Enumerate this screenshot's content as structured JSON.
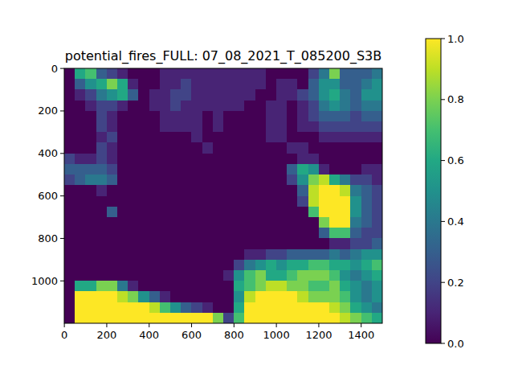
{
  "chart_data": {
    "type": "heatmap",
    "title": "potential_fires_FULL: 07_08_2021_T_085200_S3B",
    "color": "viridis",
    "xlim": [
      -0.5,
      1499.5
    ],
    "ylim": [
      1199.5,
      -0.5
    ],
    "xticks": [
      0,
      200,
      400,
      600,
      800,
      1000,
      1200,
      1400
    ],
    "yticks": [
      0,
      200,
      400,
      600,
      800,
      1000
    ],
    "color_range": [
      0,
      1
    ],
    "color_ticks": [
      {
        "value": 0,
        "label": "0.0"
      },
      0.2,
      0.4,
      0.6,
      0.8,
      {
        "value": 1,
        "label": "1.0"
      }
    ],
    "cells": [
      [
        0,
        0.6,
        0.7,
        0.3,
        0.2,
        0.1,
        0,
        0,
        0,
        0.1,
        0.1,
        0.1,
        0.1,
        0.1,
        0.1,
        0.1,
        0.1,
        0.1,
        0.1,
        0,
        0,
        0,
        0,
        0.2,
        0.4,
        0.8,
        0.3,
        0.3,
        0.3,
        0.4
      ],
      [
        0,
        0.3,
        0.5,
        0.6,
        0.8,
        0.6,
        0.1,
        0,
        0,
        0.1,
        0.1,
        0.2,
        0.1,
        0.1,
        0.1,
        0.1,
        0.1,
        0.1,
        0.1,
        0,
        0.1,
        0.1,
        0,
        0.3,
        0.5,
        0.5,
        0.3,
        0.3,
        0.4,
        0.5
      ],
      [
        0,
        0.1,
        0.2,
        0.4,
        0.5,
        0.6,
        0.3,
        0,
        0.1,
        0.1,
        0.2,
        0.2,
        0.1,
        0.1,
        0.1,
        0.1,
        0.1,
        0.1,
        0,
        0,
        0.1,
        0.1,
        0.2,
        0.3,
        0.5,
        0.6,
        0.4,
        0.3,
        0.5,
        0.5
      ],
      [
        0,
        0,
        0.1,
        0.2,
        0.2,
        0.1,
        0,
        0,
        0.1,
        0.1,
        0.2,
        0.1,
        0.1,
        0.1,
        0.1,
        0.1,
        0.1,
        0,
        0,
        0.1,
        0.1,
        0,
        0.1,
        0.2,
        0.4,
        0.5,
        0.4,
        0.3,
        0.4,
        0.4
      ],
      [
        0,
        0,
        0,
        0.2,
        0.1,
        0,
        0,
        0,
        0,
        0.1,
        0.1,
        0.1,
        0.1,
        0,
        0.1,
        0,
        0,
        0,
        0,
        0.1,
        0.1,
        0,
        0.1,
        0.2,
        0.3,
        0.3,
        0.3,
        0.2,
        0.3,
        0.3
      ],
      [
        0,
        0,
        0,
        0.2,
        0.1,
        0,
        0,
        0,
        0,
        0.1,
        0.1,
        0.1,
        0.1,
        0,
        0.1,
        0,
        0,
        0,
        0,
        0.1,
        0.1,
        0,
        0.1,
        0.1,
        0.2,
        0.2,
        0.2,
        0.2,
        0.2,
        0.2
      ],
      [
        0,
        0,
        0,
        0.1,
        0.2,
        0,
        0,
        0,
        0,
        0,
        0,
        0,
        0.1,
        0,
        0,
        0,
        0,
        0,
        0,
        0.1,
        0.1,
        0,
        0,
        0,
        0.1,
        0.1,
        0.1,
        0.1,
        0.1,
        0.1
      ],
      [
        0,
        0,
        0,
        0.2,
        0.1,
        0,
        0,
        0,
        0,
        0,
        0,
        0,
        0,
        0.1,
        0,
        0,
        0,
        0,
        0,
        0,
        0,
        0.1,
        0.1,
        0,
        0,
        0,
        0,
        0,
        0,
        0
      ],
      [
        0.2,
        0.1,
        0.1,
        0.2,
        0.1,
        0,
        0,
        0,
        0,
        0,
        0,
        0,
        0,
        0,
        0,
        0,
        0,
        0,
        0,
        0,
        0,
        0,
        0.1,
        0.1,
        0,
        0,
        0,
        0,
        0,
        0
      ],
      [
        0.3,
        0.3,
        0.3,
        0.3,
        0.2,
        0,
        0,
        0,
        0,
        0,
        0,
        0,
        0,
        0,
        0,
        0,
        0,
        0,
        0,
        0,
        0,
        0.3,
        0.6,
        0.5,
        0.1,
        0,
        0,
        0,
        0.1,
        0.1
      ],
      [
        0.2,
        0.3,
        0.4,
        0.4,
        0.3,
        0,
        0,
        0,
        0,
        0,
        0,
        0,
        0,
        0,
        0,
        0,
        0,
        0,
        0,
        0,
        0,
        0.2,
        0.5,
        0.8,
        0.9,
        0.6,
        0.4,
        0.2,
        0.2,
        0.1
      ],
      [
        0,
        0,
        0,
        0.1,
        0,
        0,
        0,
        0,
        0,
        0,
        0,
        0,
        0,
        0,
        0,
        0,
        0,
        0,
        0,
        0,
        0,
        0,
        0.3,
        0.9,
        1,
        1,
        0.9,
        0.4,
        0.3,
        0.2
      ],
      [
        0,
        0,
        0,
        0,
        0,
        0,
        0,
        0,
        0,
        0,
        0,
        0,
        0,
        0,
        0,
        0,
        0,
        0,
        0,
        0,
        0,
        0,
        0.2,
        0.9,
        1,
        1,
        1,
        0.5,
        0.3,
        0.2
      ],
      [
        0,
        0,
        0,
        0,
        0.3,
        0,
        0,
        0,
        0,
        0,
        0,
        0,
        0,
        0,
        0,
        0,
        0,
        0,
        0,
        0,
        0,
        0,
        0,
        0.7,
        1,
        1,
        1,
        0.5,
        0.3,
        0.2
      ],
      [
        0,
        0,
        0,
        0,
        0,
        0,
        0,
        0,
        0,
        0,
        0,
        0,
        0,
        0,
        0,
        0,
        0,
        0,
        0,
        0,
        0,
        0,
        0,
        0,
        0.8,
        1,
        1,
        0.4,
        0.3,
        0.2
      ],
      [
        0,
        0,
        0,
        0,
        0,
        0,
        0,
        0,
        0,
        0,
        0,
        0,
        0,
        0,
        0,
        0,
        0,
        0,
        0,
        0,
        0,
        0,
        0,
        0,
        0.3,
        0.7,
        0.7,
        0.3,
        0.2,
        0.2
      ],
      [
        0,
        0,
        0,
        0,
        0,
        0,
        0,
        0,
        0,
        0,
        0,
        0,
        0,
        0,
        0,
        0,
        0,
        0,
        0,
        0,
        0,
        0,
        0,
        0,
        0,
        0.1,
        0.1,
        0.2,
        0.2,
        0.3
      ],
      [
        0,
        0,
        0,
        0,
        0,
        0,
        0,
        0,
        0,
        0,
        0,
        0,
        0,
        0,
        0,
        0,
        0,
        0.1,
        0.1,
        0.2,
        0.2,
        0.3,
        0.3,
        0.3,
        0.3,
        0.4,
        0.3,
        0.4,
        0.5,
        0.5
      ],
      [
        0,
        0,
        0,
        0,
        0,
        0,
        0,
        0,
        0,
        0,
        0,
        0,
        0,
        0,
        0,
        0,
        0.2,
        0.4,
        0.5,
        0.6,
        0.5,
        0.6,
        0.6,
        0.7,
        0.7,
        0.6,
        0.6,
        0.5,
        0.6,
        0.7
      ],
      [
        0,
        0,
        0,
        0,
        0,
        0,
        0,
        0,
        0,
        0,
        0,
        0,
        0,
        0,
        0,
        0.1,
        0.5,
        0.7,
        0.8,
        0.6,
        0.6,
        0.7,
        0.8,
        0.8,
        0.8,
        0.7,
        0.5,
        0.4,
        0.5,
        0.6
      ],
      [
        0,
        0.6,
        0.6,
        0.8,
        0.8,
        0.4,
        0.1,
        0,
        0,
        0,
        0,
        0,
        0,
        0,
        0,
        0,
        0.6,
        0.7,
        0.8,
        0.9,
        0.9,
        0.8,
        0.8,
        0.7,
        0.7,
        0.8,
        0.6,
        0.5,
        0.4,
        0.5
      ],
      [
        0,
        1,
        1,
        1,
        1,
        0.9,
        0.8,
        0.5,
        0.3,
        0.1,
        0,
        0,
        0,
        0,
        0,
        0,
        0.5,
        0.9,
        1,
        1,
        1,
        1,
        0.9,
        0.8,
        0.8,
        0.8,
        0.7,
        0.5,
        0.4,
        0.5
      ],
      [
        0,
        1,
        1,
        1,
        1,
        1,
        1,
        1,
        0.9,
        0.7,
        0.5,
        0.3,
        0.2,
        0.1,
        0,
        0,
        0.6,
        1,
        1,
        1,
        1,
        1,
        1,
        1,
        1,
        0.9,
        0.8,
        0.6,
        0.5,
        0.4
      ],
      [
        0,
        1,
        1,
        1,
        1,
        1,
        1,
        1,
        1,
        1,
        1,
        1,
        1,
        1,
        0.8,
        0.2,
        0.7,
        1,
        1,
        1,
        1,
        1,
        1,
        1,
        1,
        1,
        0.9,
        0.8,
        0.7,
        0.6
      ]
    ]
  }
}
